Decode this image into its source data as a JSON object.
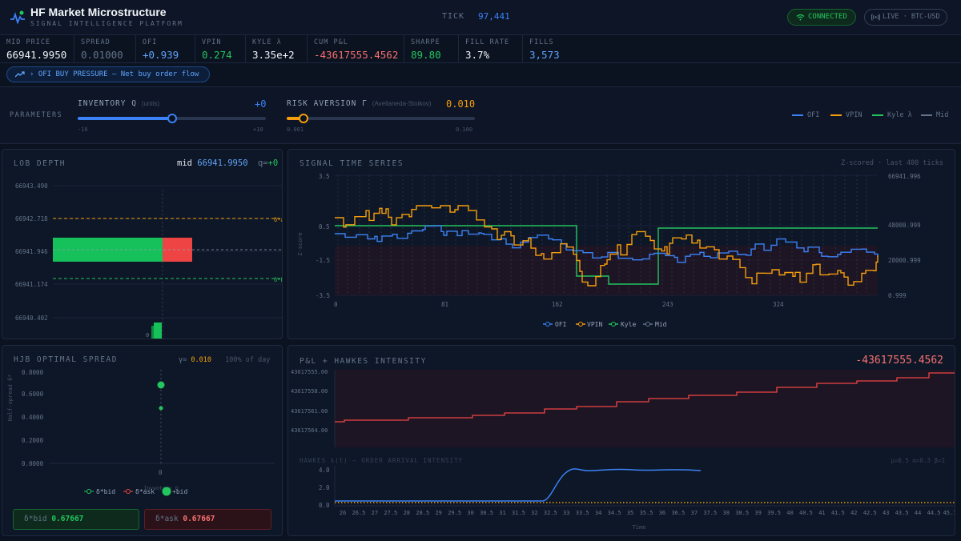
{
  "header": {
    "title": "HF Market Microstructure",
    "subtitle": "SIGNAL INTELLIGENCE PLATFORM",
    "tick_label": "TICK",
    "tick_value": "97,441",
    "connection": "CONNECTED",
    "live_label": "LIVE · BTC-USD"
  },
  "metrics": [
    {
      "label": "MID PRICE",
      "value": "66941.9950",
      "color": "#f1f5f9"
    },
    {
      "label": "SPREAD",
      "value": "0.01000",
      "color": "#64748b"
    },
    {
      "label": "OFI",
      "value": "+0.939",
      "color": "#60a5fa"
    },
    {
      "label": "VPIN",
      "value": "0.274",
      "color": "#22c55e"
    },
    {
      "label": "KYLE λ",
      "value": "3.35e+2",
      "color": "#f1f5f9"
    },
    {
      "label": "CUM P&L",
      "value": "-43617555.4562",
      "color": "#f87171"
    },
    {
      "label": "SHARPE",
      "value": "89.80",
      "color": "#22c55e"
    },
    {
      "label": "FILL RATE",
      "value": "3.7%",
      "color": "#f1f5f9"
    },
    {
      "label": "FILLS",
      "value": "3,573",
      "color": "#60a5fa"
    }
  ],
  "alert": {
    "text": "› OFI BUY PRESSURE — Net buy order flow",
    "icon": "trend-up-icon"
  },
  "params": {
    "label": "PARAMETERS",
    "inventory": {
      "title": "INVENTORY Q",
      "unit": "(units)",
      "value": "+0",
      "min": "-10",
      "max": "+10",
      "position": 0.5
    },
    "risk": {
      "title": "RISK AVERSION Γ",
      "unit": "(Avellaneda-Stoikov)",
      "value": "0.010",
      "min": "0.001",
      "max": "0.100",
      "position": 0.09
    },
    "legend": [
      {
        "label": "OFI",
        "color": "#3b82f6"
      },
      {
        "label": "VPIN",
        "color": "#f59e0b"
      },
      {
        "label": "Kyle λ",
        "color": "#22c55e"
      },
      {
        "label": "Mid",
        "color": "#64748b"
      }
    ]
  },
  "lob": {
    "title": "LOB DEPTH",
    "mid_label": "mid",
    "mid_value": "66941.9950",
    "q_label": "q=",
    "q_value": "+0",
    "price_ticks": [
      "66943.490",
      "66942.718",
      "66941.946",
      "66941.174",
      "66940.402"
    ],
    "ref_labels": [
      "δ*a",
      "δ*b"
    ],
    "zero_label": "0"
  },
  "signals": {
    "title": "SIGNAL TIME SERIES",
    "note": "Z-scored · last 400 ticks",
    "ylabel": "Z-score",
    "y_ticks": [
      "3.5",
      "0.5",
      "-1.5",
      "-3.5"
    ],
    "x_ticks": [
      "0",
      "81",
      "162",
      "243",
      "324"
    ],
    "right_ticks": [
      "66941.996",
      "48000.999",
      "28000.999",
      "0.999"
    ],
    "legend": [
      "OFI",
      "VPIN",
      "Kyle",
      "Mid"
    ]
  },
  "hjb": {
    "title": "HJB OPTIMAL SPREAD",
    "gamma_label": "γ=",
    "gamma_value": "0.010",
    "day_label": "100% of day",
    "ylabel": "Half-spread δ*",
    "y_ticks": [
      "0.8000",
      "0.6000",
      "0.4000",
      "0.2000",
      "0.0000"
    ],
    "x_tick": "0",
    "xlabel": "Inventory Q",
    "legend": [
      "δ*bid",
      "δ*ask",
      "+bid"
    ],
    "bid_label": "δ*bid",
    "bid_value": "0.67667",
    "ask_label": "δ*ask",
    "ask_value": "0.67667"
  },
  "pnl": {
    "title": "P&L + HAWKES INTENSITY",
    "value": "-43617555.4562",
    "y_ticks": [
      "43617555.00",
      "43617558.00",
      "43617561.00",
      "43617564.00"
    ],
    "hawkes_title": "HAWKES λ(t) — ORDER ARRIVAL INTENSITY",
    "hawkes_params": "μ=0.5 α=0.3 β=1",
    "hawkes_y_ticks": [
      "4.0",
      "2.0",
      "0.0"
    ],
    "x_ticks": [
      "26",
      "26.5",
      "27",
      "27.5",
      "28",
      "28.5",
      "29",
      "29.5",
      "30",
      "30.5",
      "31",
      "31.5",
      "32",
      "32.5",
      "33",
      "33.5",
      "34",
      "34.5",
      "35",
      "35.5",
      "36",
      "36.5",
      "37",
      "37.5",
      "38",
      "38.5",
      "39",
      "39.5",
      "40",
      "40.5",
      "41",
      "41.5",
      "42",
      "42.5",
      "43",
      "43.5",
      "44",
      "44.5",
      "45.7"
    ],
    "xlabel": "Time"
  }
}
